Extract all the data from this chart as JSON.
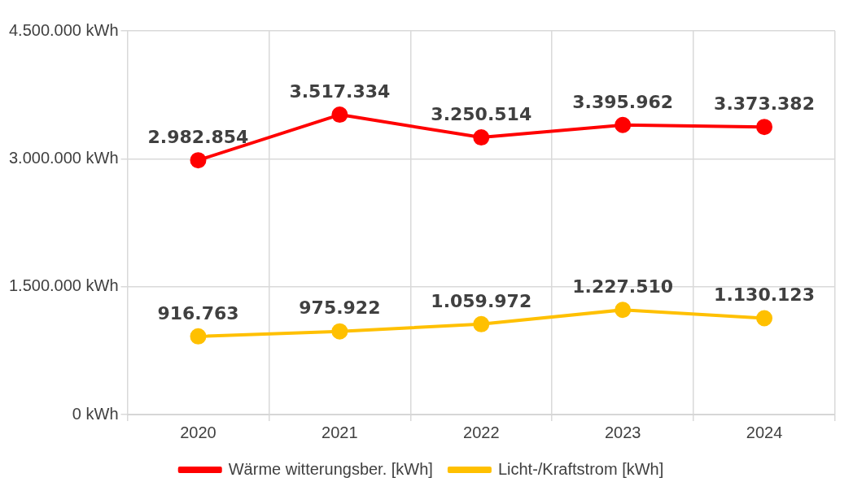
{
  "chart_data": {
    "type": "line",
    "categories": [
      "2020",
      "2021",
      "2022",
      "2023",
      "2024"
    ],
    "series": [
      {
        "name": "Wärme witterungsber. [kWh]",
        "color": "#ff0000",
        "values": [
          2982854,
          3517334,
          3250514,
          3395962,
          3373382
        ],
        "value_labels": [
          "2.982.854",
          "3.517.334",
          "3.250.514",
          "3.395.962",
          "3.373.382"
        ]
      },
      {
        "name": "Licht-/Kraftstrom [kWh]",
        "color": "#ffc000",
        "values": [
          916763,
          975922,
          1059972,
          1227510,
          1130123
        ],
        "value_labels": [
          "916.763",
          "975.922",
          "1.059.972",
          "1.227.510",
          "1.130.123"
        ]
      }
    ],
    "ylim": [
      0,
      4500000
    ],
    "yticks": [
      {
        "value": 0,
        "label": "0 kWh"
      },
      {
        "value": 1500000,
        "label": "1.500.000 kWh"
      },
      {
        "value": 3000000,
        "label": "3.000.000 kWh"
      },
      {
        "value": 4500000,
        "label": "4.500.000 kWh"
      }
    ],
    "grid": true,
    "legend": "bottom",
    "marker": "circle",
    "line_style": "solid"
  }
}
